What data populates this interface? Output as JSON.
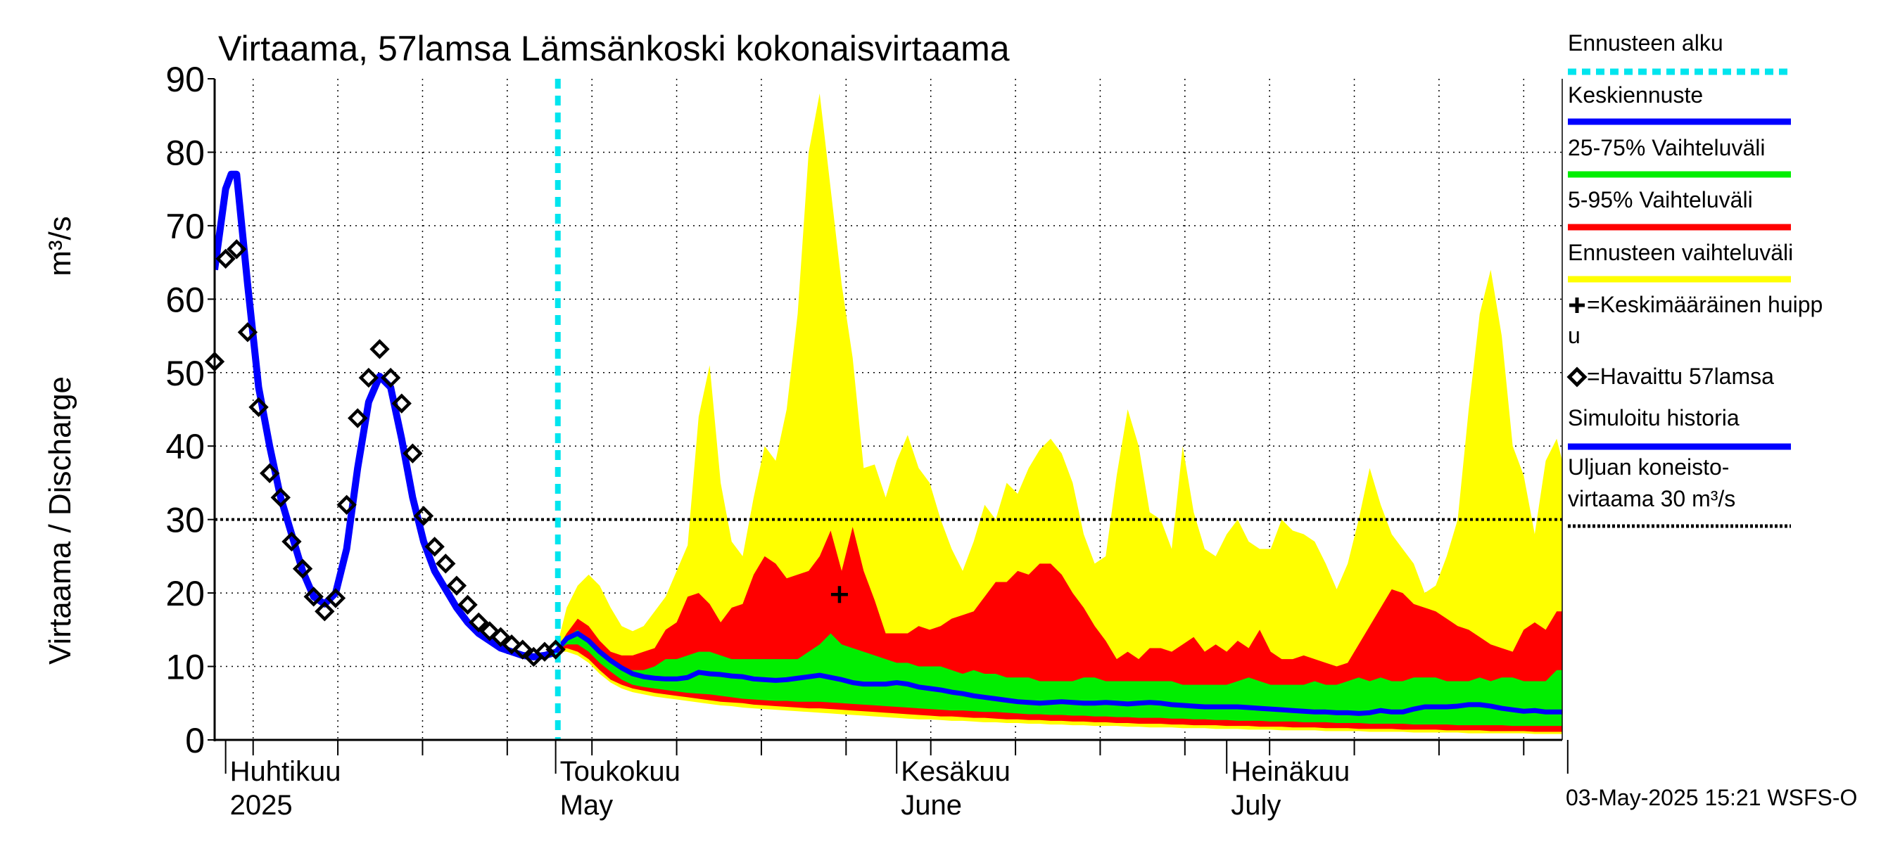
{
  "chart_data": {
    "type": "area",
    "title": "Virtaama, 57lamsa Lämsänkoski kokonaisvirtaama",
    "ylabel": "Virtaama / Discharge",
    "yunit": "m³/s",
    "ylim": [
      0,
      90
    ],
    "yticks": [
      0,
      10,
      20,
      30,
      40,
      50,
      60,
      70,
      80,
      90
    ],
    "x_unit": "day of year 2025",
    "xlim": [
      90,
      212.5
    ],
    "month_ticks": [
      91,
      121,
      152,
      182,
      213
    ],
    "month_labels": [
      {
        "day": 91,
        "fi": "Huhtikuu",
        "en": "2025"
      },
      {
        "day": 121,
        "fi": "Toukokuu",
        "en": "May"
      },
      {
        "day": 152,
        "fi": "Kesäkuu",
        "en": "June"
      },
      {
        "day": 182,
        "fi": "Heinäkuu",
        "en": "July"
      }
    ],
    "forecast_start_day": 121.2,
    "reference_line": {
      "value": 30,
      "label": "Uljuan koneisto-virtaama 30 m³/s"
    },
    "mean_peak": {
      "day": 146.8,
      "value": 19.8
    },
    "legend": [
      {
        "label": "Ennusteen alku",
        "color": "#00e5ee",
        "style": "dashed"
      },
      {
        "label": "Keskiennuste",
        "color": "#0000ff",
        "style": "line"
      },
      {
        "label": "25-75% Vaihteluväli",
        "color": "#00ee00",
        "style": "line"
      },
      {
        "label": "5-95% Vaihteluväli",
        "color": "#ff0000",
        "style": "line"
      },
      {
        "label": "Ennusteen vaihteluväli",
        "color": "#ffff00",
        "style": "line"
      },
      {
        "label": "=Keskimääräinen huipp u",
        "color": "#000000",
        "style": "plus"
      },
      {
        "label": "=Havaittu 57lamsa",
        "color": "#000000",
        "style": "diamond"
      },
      {
        "label": "Simuloitu historia",
        "color": "#0000ff",
        "style": "line"
      },
      {
        "label": "Uljuan koneisto- virtaama 30 m³/s",
        "color": "#000000",
        "style": "dotted"
      }
    ],
    "simulated_history": {
      "x": [
        90,
        91,
        91.5,
        92,
        93,
        94,
        95,
        96,
        97,
        98,
        99,
        100,
        101,
        102,
        103,
        104,
        105,
        106,
        107,
        108,
        109,
        110,
        111,
        112,
        113,
        114,
        115,
        116,
        117,
        118,
        119,
        120,
        121.2
      ],
      "y": [
        64,
        75,
        77,
        77,
        62,
        48,
        40,
        33,
        28,
        23,
        19.5,
        18.5,
        20,
        26,
        37,
        46,
        49.5,
        48,
        41,
        33,
        27,
        23,
        20.5,
        18,
        16,
        14.5,
        13.5,
        12.5,
        12,
        11.5,
        11.3,
        11.5,
        12
      ]
    },
    "observed": {
      "x": [
        90,
        91,
        92,
        93,
        94,
        95,
        96,
        97,
        98,
        99,
        100,
        101,
        102,
        103,
        104,
        105,
        106,
        107,
        108,
        109,
        110,
        111,
        112,
        113,
        114,
        115,
        116,
        117,
        118,
        119,
        120,
        121
      ],
      "y": [
        51.5,
        65.5,
        66.8,
        55.5,
        45.3,
        36.3,
        33,
        27,
        23.3,
        19.5,
        17.5,
        19.3,
        32,
        43.8,
        49.3,
        53.2,
        49.3,
        45.8,
        39,
        30.5,
        26.3,
        24,
        21,
        18.4,
        16,
        14.8,
        14,
        13,
        12.3,
        11.3,
        12,
        12.3
      ]
    },
    "forecast_x": [
      121,
      122,
      123,
      124,
      125,
      126,
      127,
      128,
      129,
      130,
      131,
      132,
      133,
      134,
      135,
      136,
      137,
      138,
      139,
      140,
      141,
      142,
      143,
      144,
      145,
      146,
      147,
      148,
      149,
      150,
      151,
      152,
      153,
      154,
      155,
      156,
      157,
      158,
      159,
      160,
      161,
      162,
      163,
      164,
      165,
      166,
      167,
      168,
      169,
      170,
      171,
      172,
      173,
      174,
      175,
      176,
      177,
      178,
      179,
      180,
      181,
      182,
      183,
      184,
      185,
      186,
      187,
      188,
      189,
      190,
      191,
      192,
      193,
      194,
      195,
      196,
      197,
      198,
      199,
      200,
      201,
      202,
      203,
      204,
      205,
      206,
      207,
      208,
      209,
      210,
      211,
      212
    ],
    "series": [
      {
        "name": "Ennusteen vaihteluväli max",
        "values": [
          12,
          18,
          21,
          22.5,
          21,
          18,
          15.5,
          14.8,
          15.5,
          17.5,
          19.5,
          23,
          26.5,
          44,
          51,
          35,
          27,
          25,
          33,
          40,
          38,
          45,
          58,
          80,
          88,
          75,
          62,
          52,
          37,
          37.5,
          33,
          38,
          41.5,
          37,
          35,
          30,
          26,
          23,
          27,
          32,
          30,
          35,
          33.5,
          37,
          39.5,
          41,
          39,
          35,
          28,
          24,
          25,
          36,
          45,
          40,
          31,
          30,
          26,
          40,
          31,
          26,
          25,
          28,
          30,
          27,
          26,
          26,
          30,
          28.5,
          28,
          27,
          24,
          20.5,
          24,
          30,
          37,
          32,
          28,
          26,
          24,
          20,
          21,
          25,
          30,
          45,
          58,
          64,
          55,
          40,
          36,
          28,
          38,
          41,
          38
        ]
      },
      {
        "name": "5-95% Vaihteluväli upper",
        "values": [
          12,
          14.5,
          16.5,
          15.5,
          13.5,
          12,
          11.5,
          11.5,
          12,
          12.5,
          15,
          16,
          19.5,
          20,
          18.5,
          16,
          18,
          18.5,
          22.5,
          25,
          24,
          22,
          22.5,
          23,
          25,
          28.5,
          23,
          29,
          23,
          19,
          14.5,
          14.5,
          14.5,
          15.5,
          15,
          15.5,
          16.5,
          17,
          17.5,
          19.5,
          21.5,
          21.5,
          23,
          22.5,
          24,
          24,
          22.5,
          20,
          18,
          15.5,
          13.5,
          11,
          12,
          11,
          12.5,
          12.5,
          12,
          13,
          14,
          12,
          13,
          12,
          13.5,
          12.5,
          15,
          12,
          11,
          11,
          11.5,
          11,
          10.5,
          10,
          10.5,
          13,
          15.5,
          18,
          20.5,
          20,
          18.5,
          18,
          17.5,
          16.5,
          15.5,
          15,
          14,
          13,
          12.5,
          12,
          15,
          16,
          15,
          17.5
        ]
      },
      {
        "name": "25-75% Vaihteluväli upper",
        "values": [
          12,
          14,
          15,
          13.5,
          12,
          10.5,
          9.5,
          9.5,
          9.5,
          10,
          11,
          11,
          11.5,
          12,
          12,
          11.5,
          11,
          11,
          11,
          11,
          11,
          11,
          11,
          12,
          13,
          14.5,
          13,
          12.5,
          12,
          11.5,
          11,
          10.5,
          10.5,
          10,
          10,
          10,
          9.5,
          9,
          9.5,
          9,
          9,
          8.5,
          8.5,
          8.5,
          8,
          8,
          8,
          8,
          8.5,
          8.5,
          8,
          8,
          8,
          8,
          8,
          8,
          8,
          7.5,
          7.5,
          7.5,
          7.5,
          7.5,
          8,
          8.5,
          8,
          7.5,
          7.5,
          7.5,
          7.5,
          8,
          7.5,
          7.5,
          8,
          8.5,
          8,
          8.5,
          8,
          8,
          8.5,
          8.5,
          8.5,
          8,
          8,
          8,
          8.5,
          8,
          8.5,
          8.5,
          8,
          8,
          8,
          9.5,
          9.5
        ]
      },
      {
        "name": "Keskiennuste",
        "values": [
          12,
          13.8,
          14.5,
          13.5,
          12,
          10.8,
          9.8,
          9,
          8.6,
          8.4,
          8.3,
          8.3,
          8.5,
          9.2,
          9,
          8.9,
          8.7,
          8.6,
          8.3,
          8.2,
          8.1,
          8.2,
          8.4,
          8.6,
          8.8,
          8.5,
          8.2,
          7.8,
          7.6,
          7.6,
          7.6,
          7.8,
          7.6,
          7.2,
          7,
          6.8,
          6.5,
          6.3,
          6,
          5.8,
          5.6,
          5.4,
          5.2,
          5.1,
          5,
          5.1,
          5.2,
          5.1,
          5,
          5,
          5.1,
          5,
          4.9,
          5,
          5.1,
          5,
          4.8,
          4.7,
          4.6,
          4.5,
          4.5,
          4.5,
          4.5,
          4.4,
          4.3,
          4.2,
          4.1,
          4,
          3.9,
          3.8,
          3.8,
          3.7,
          3.7,
          3.6,
          3.7,
          4,
          3.8,
          3.8,
          4.2,
          4.5,
          4.5,
          4.5,
          4.6,
          4.8,
          4.8,
          4.6,
          4.3,
          4.1,
          3.9,
          4,
          3.8,
          3.8,
          3.8
        ]
      },
      {
        "name": "25-75% Vaihteluväli lower",
        "values": [
          12,
          13,
          13,
          12,
          10.5,
          9.3,
          8.2,
          7.5,
          7.2,
          7,
          6.8,
          6.6,
          6.4,
          6.3,
          6.2,
          6,
          5.8,
          5.6,
          5.5,
          5.4,
          5.3,
          5.3,
          5.2,
          5.2,
          5.2,
          5.1,
          5,
          4.9,
          4.8,
          4.7,
          4.6,
          4.5,
          4.4,
          4.3,
          4.2,
          4.1,
          4,
          4,
          3.9,
          3.8,
          3.8,
          3.7,
          3.6,
          3.5,
          3.5,
          3.4,
          3.4,
          3.3,
          3.3,
          3.2,
          3.2,
          3.1,
          3.1,
          3,
          3,
          3,
          2.9,
          2.9,
          2.8,
          2.8,
          2.7,
          2.7,
          2.6,
          2.6,
          2.6,
          2.5,
          2.5,
          2.5,
          2.4,
          2.4,
          2.4,
          2.3,
          2.3,
          2.3,
          2.2,
          2.2,
          2.2,
          2.2,
          2.1,
          2.1,
          2.1,
          2.1,
          2,
          2,
          2,
          2,
          2,
          1.9,
          1.9,
          1.9,
          1.9,
          1.9,
          1.9
        ]
      },
      {
        "name": "5-95% Vaihteluväli lower",
        "values": [
          12,
          12.5,
          12,
          11,
          9.5,
          8.2,
          7.5,
          7,
          6.7,
          6.4,
          6.2,
          6,
          5.8,
          5.6,
          5.4,
          5.2,
          5.1,
          5,
          4.8,
          4.7,
          4.6,
          4.5,
          4.4,
          4.3,
          4.3,
          4.2,
          4.1,
          4,
          3.9,
          3.8,
          3.7,
          3.6,
          3.5,
          3.4,
          3.3,
          3.2,
          3.2,
          3.1,
          3,
          3,
          2.9,
          2.8,
          2.8,
          2.7,
          2.7,
          2.6,
          2.6,
          2.5,
          2.5,
          2.4,
          2.4,
          2.3,
          2.3,
          2.2,
          2.2,
          2.2,
          2.1,
          2.1,
          2,
          2,
          2,
          1.9,
          1.9,
          1.9,
          1.8,
          1.8,
          1.8,
          1.7,
          1.7,
          1.7,
          1.6,
          1.6,
          1.6,
          1.5,
          1.5,
          1.5,
          1.5,
          1.4,
          1.4,
          1.4,
          1.4,
          1.3,
          1.3,
          1.3,
          1.3,
          1.2,
          1.2,
          1.2,
          1.2,
          1.1,
          1.1,
          1.1,
          1.1
        ]
      },
      {
        "name": "Ennusteen vaihteluväli min",
        "values": [
          12,
          12,
          11.5,
          10.5,
          9,
          7.8,
          7,
          6.5,
          6.2,
          5.9,
          5.7,
          5.5,
          5.3,
          5.1,
          4.9,
          4.7,
          4.6,
          4.4,
          4.3,
          4.2,
          4.1,
          4,
          3.9,
          3.8,
          3.7,
          3.6,
          3.5,
          3.4,
          3.3,
          3.2,
          3.1,
          3,
          2.9,
          2.8,
          2.8,
          2.7,
          2.6,
          2.6,
          2.5,
          2.4,
          2.4,
          2.3,
          2.3,
          2.2,
          2.2,
          2.1,
          2.1,
          2,
          2,
          1.9,
          1.9,
          1.9,
          1.8,
          1.8,
          1.7,
          1.7,
          1.7,
          1.6,
          1.6,
          1.6,
          1.5,
          1.5,
          1.5,
          1.4,
          1.4,
          1.4,
          1.3,
          1.3,
          1.3,
          1.3,
          1.2,
          1.2,
          1.2,
          1.2,
          1.1,
          1.1,
          1.1,
          1.1,
          1,
          1,
          1,
          1,
          1,
          0.9,
          0.9,
          0.9,
          0.9,
          0.9,
          0.9,
          0.8,
          0.8,
          0.8,
          0.8
        ]
      }
    ]
  },
  "footer": {
    "timestamp": "03-May-2025 15:21 WSFS-O"
  }
}
